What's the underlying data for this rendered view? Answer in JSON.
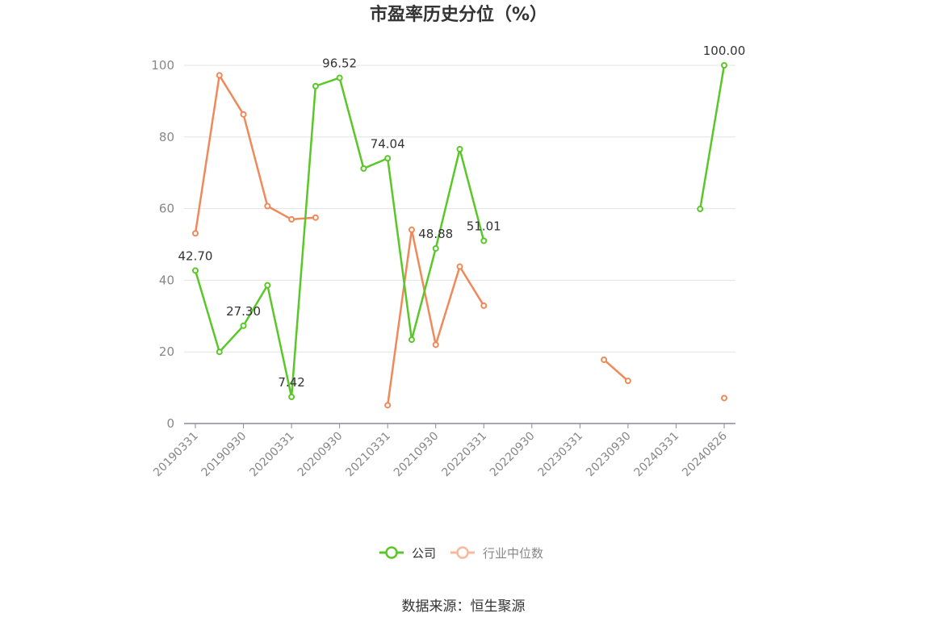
{
  "chart_data": {
    "type": "line",
    "title": "市盈率历史分位（%）",
    "xlabel": "",
    "ylabel": "",
    "ylim": [
      0,
      100
    ],
    "yticks": [
      0,
      20,
      40,
      60,
      80,
      100
    ],
    "grid": true,
    "legend_position": "bottom-center",
    "categories": [
      "20190331",
      "20190630",
      "20190930",
      "20191231",
      "20200331",
      "20200630",
      "20200930",
      "20201231",
      "20210331",
      "20210630",
      "20210930",
      "20211231",
      "20220331",
      "20220630",
      "20220930",
      "20221231",
      "20230331",
      "20230630",
      "20230930",
      "20231231",
      "20240331",
      "20240630",
      "20240826"
    ],
    "tick_labels": [
      "20190331",
      "20190930",
      "20200331",
      "20200930",
      "20210331",
      "20210930",
      "20220331",
      "20220930",
      "20230331",
      "20230930",
      "20240331",
      "20240826"
    ],
    "series": [
      {
        "name": "公司",
        "color": "#5ac728",
        "values": [
          42.7,
          20.0,
          27.3,
          38.6,
          7.42,
          94.2,
          96.52,
          71.2,
          74.04,
          23.4,
          48.88,
          76.6,
          51.01,
          null,
          null,
          null,
          null,
          null,
          null,
          null,
          null,
          59.9,
          100.0
        ]
      },
      {
        "name": "行业中位数",
        "color": "#f0895a",
        "values": [
          53.1,
          97.2,
          86.3,
          60.7,
          57.0,
          57.5,
          null,
          null,
          5.1,
          54.1,
          22.0,
          43.8,
          32.9,
          null,
          null,
          null,
          null,
          17.8,
          11.9,
          null,
          null,
          null,
          7.1
        ]
      }
    ],
    "data_labels": [
      {
        "series": 0,
        "index": 0,
        "text": "42.70"
      },
      {
        "series": 0,
        "index": 2,
        "text": "27.30"
      },
      {
        "series": 0,
        "index": 4,
        "text": "7.42"
      },
      {
        "series": 0,
        "index": 6,
        "text": "96.52"
      },
      {
        "series": 0,
        "index": 8,
        "text": "74.04"
      },
      {
        "series": 0,
        "index": 10,
        "text": "48.88"
      },
      {
        "series": 0,
        "index": 12,
        "text": "51.01"
      },
      {
        "series": 0,
        "index": 22,
        "text": "100.00"
      }
    ]
  },
  "source_text": "数据来源：恒生聚源"
}
